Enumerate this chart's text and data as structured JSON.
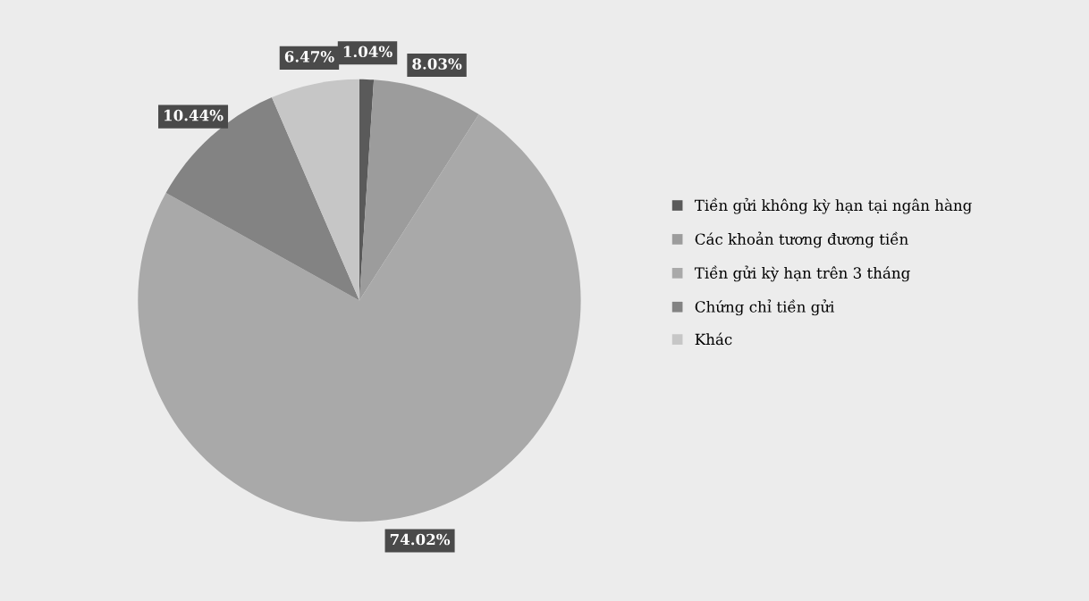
{
  "chart_data": {
    "type": "pie",
    "categories": [
      "Tiền gửi không kỳ hạn tại ngân hàng",
      "Các khoản tương đương tiền",
      "Tiền gửi kỳ hạn trên 3 tháng",
      "Chứng chỉ tiền gửi",
      "Khác"
    ],
    "values": [
      1.04,
      8.03,
      74.02,
      10.44,
      6.47
    ],
    "value_labels": [
      "1.04%",
      "8.03%",
      "74.02%",
      "10.44%",
      "6.47%"
    ],
    "colors": [
      "#5a5a5a",
      "#9c9c9c",
      "#a9a9a9",
      "#838383",
      "#c6c6c6"
    ],
    "legend": "right"
  }
}
